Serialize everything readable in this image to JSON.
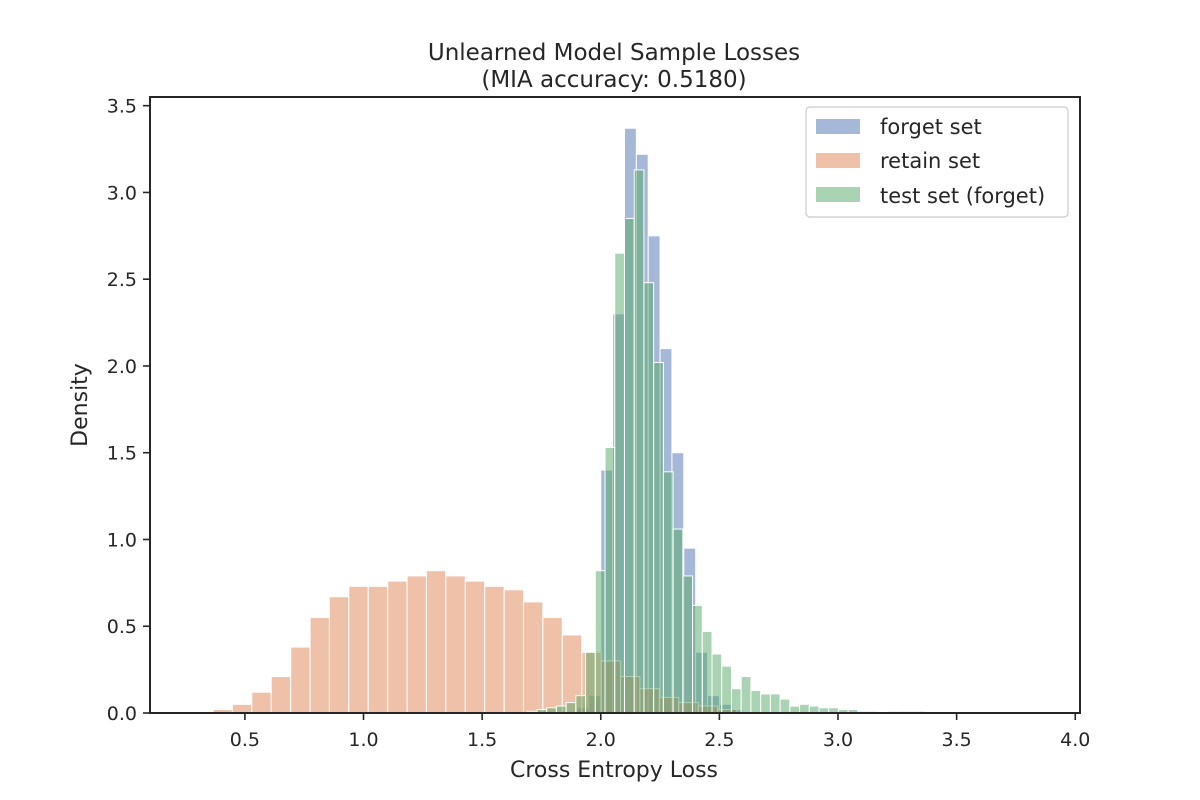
{
  "chart_data": {
    "type": "histogram",
    "title": "Unlearned Model Sample Losses",
    "subtitle": "(MIA accuracy: 0.5180)",
    "xlabel": "Cross Entropy Loss",
    "ylabel": "Density",
    "xlim": [
      0.1,
      4.02
    ],
    "ylim": [
      0,
      3.55
    ],
    "xticks": [
      0.5,
      1.0,
      1.5,
      2.0,
      2.5,
      3.0,
      3.5,
      4.0
    ],
    "xtick_labels": [
      "0.5",
      "1.0",
      "1.5",
      "2.0",
      "2.5",
      "3.0",
      "3.5",
      "4.0"
    ],
    "yticks": [
      0.0,
      0.5,
      1.0,
      1.5,
      2.0,
      2.5,
      3.0,
      3.5
    ],
    "ytick_labels": [
      "0.0",
      "0.5",
      "1.0",
      "1.5",
      "2.0",
      "2.5",
      "3.0",
      "3.5"
    ],
    "grid": false,
    "legend_position": "top-right",
    "series": [
      {
        "name": "forget set",
        "color": "#4c72b0",
        "opacity": 0.5,
        "bin_width": 0.05,
        "bins": [
          [
            1.9,
            0.03
          ],
          [
            1.95,
            0.1
          ],
          [
            2.0,
            1.4
          ],
          [
            2.05,
            2.3
          ],
          [
            2.1,
            3.37
          ],
          [
            2.15,
            3.22
          ],
          [
            2.2,
            2.75
          ],
          [
            2.25,
            2.1
          ],
          [
            2.3,
            1.5
          ],
          [
            2.35,
            0.95
          ],
          [
            2.4,
            0.35
          ],
          [
            2.45,
            0.1
          ],
          [
            2.5,
            0.05
          ],
          [
            2.55,
            0.02
          ]
        ]
      },
      {
        "name": "retain set",
        "color": "#dd8452",
        "opacity": 0.5,
        "bin_width": 0.0818,
        "bins": [
          [
            0.366,
            0.02
          ],
          [
            0.447,
            0.05
          ],
          [
            0.529,
            0.12
          ],
          [
            0.611,
            0.21
          ],
          [
            0.693,
            0.38
          ],
          [
            0.775,
            0.55
          ],
          [
            0.856,
            0.67
          ],
          [
            0.938,
            0.73
          ],
          [
            1.02,
            0.73
          ],
          [
            1.102,
            0.76
          ],
          [
            1.184,
            0.79
          ],
          [
            1.265,
            0.82
          ],
          [
            1.347,
            0.79
          ],
          [
            1.429,
            0.76
          ],
          [
            1.511,
            0.73
          ],
          [
            1.593,
            0.71
          ],
          [
            1.674,
            0.64
          ],
          [
            1.756,
            0.55
          ],
          [
            1.838,
            0.45
          ],
          [
            1.92,
            0.35
          ],
          [
            2.002,
            0.3
          ],
          [
            2.083,
            0.21
          ],
          [
            2.165,
            0.14
          ],
          [
            2.247,
            0.09
          ],
          [
            2.329,
            0.06
          ],
          [
            2.411,
            0.04
          ],
          [
            2.492,
            0.02
          ]
        ]
      },
      {
        "name": "test set (forget)",
        "color": "#55a868",
        "opacity": 0.5,
        "bin_width": 0.0409,
        "bins": [
          [
            1.69,
            0.01
          ],
          [
            1.731,
            0.02
          ],
          [
            1.772,
            0.03
          ],
          [
            1.813,
            0.04
          ],
          [
            1.854,
            0.06
          ],
          [
            1.895,
            0.1
          ],
          [
            1.936,
            0.35
          ],
          [
            1.977,
            0.82
          ],
          [
            2.018,
            1.53
          ],
          [
            2.059,
            2.65
          ],
          [
            2.1,
            2.85
          ],
          [
            2.141,
            3.13
          ],
          [
            2.182,
            2.48
          ],
          [
            2.223,
            2.02
          ],
          [
            2.264,
            1.39
          ],
          [
            2.305,
            1.06
          ],
          [
            2.346,
            0.79
          ],
          [
            2.387,
            0.62
          ],
          [
            2.428,
            0.47
          ],
          [
            2.469,
            0.34
          ],
          [
            2.51,
            0.27
          ],
          [
            2.551,
            0.14
          ],
          [
            2.592,
            0.21
          ],
          [
            2.633,
            0.13
          ],
          [
            2.674,
            0.11
          ],
          [
            2.715,
            0.11
          ],
          [
            2.756,
            0.08
          ],
          [
            2.797,
            0.04
          ],
          [
            2.838,
            0.05
          ],
          [
            2.879,
            0.04
          ],
          [
            2.92,
            0.03
          ],
          [
            2.961,
            0.03
          ],
          [
            3.002,
            0.02
          ],
          [
            3.043,
            0.02
          ],
          [
            3.084,
            0.01
          ],
          [
            3.125,
            0.01
          ],
          [
            3.207,
            0.01
          ],
          [
            3.248,
            0.01
          ],
          [
            3.289,
            0.01
          ],
          [
            3.33,
            0.01
          ],
          [
            3.453,
            0.005
          ],
          [
            3.617,
            0.005
          ],
          [
            3.781,
            0.005
          ]
        ]
      }
    ]
  }
}
